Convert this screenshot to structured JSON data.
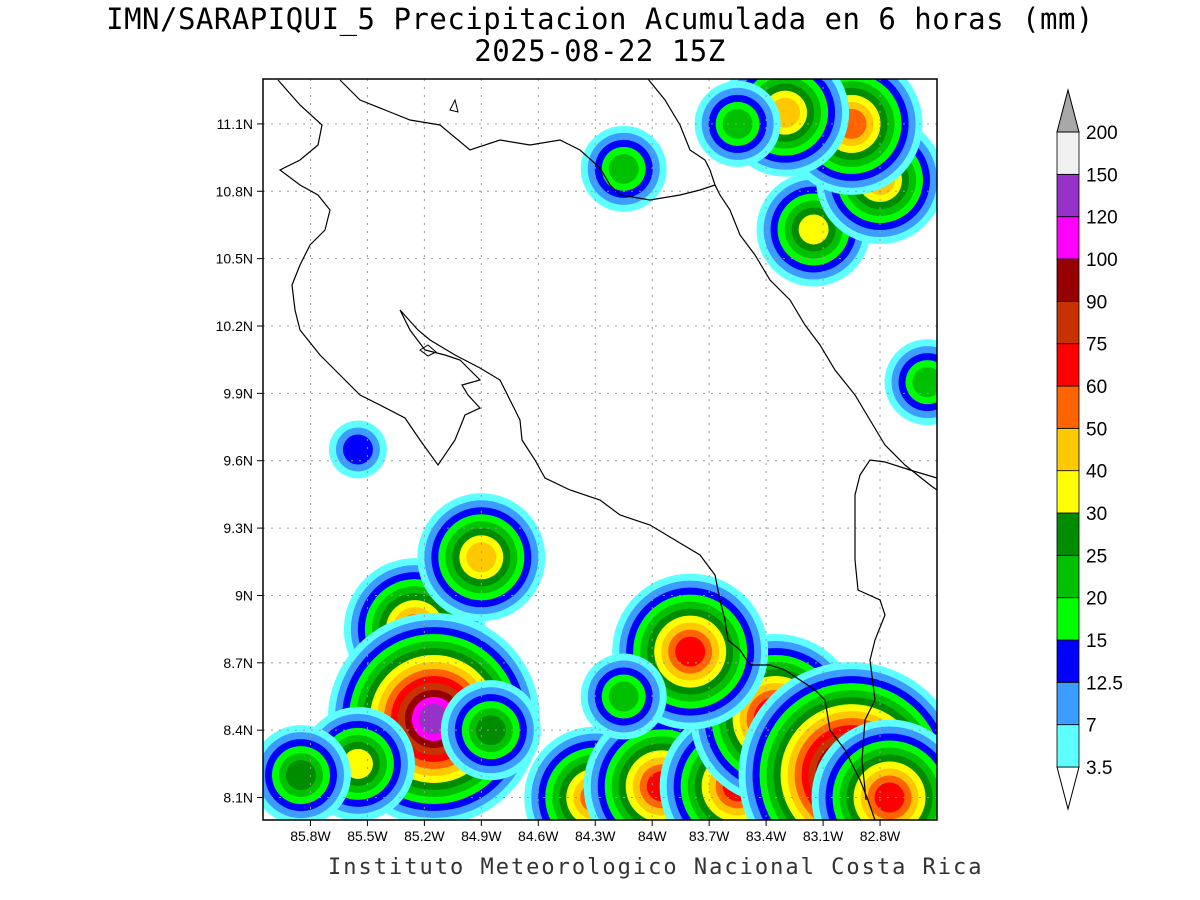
{
  "header": {
    "title": "IMN/SARAPIQUI_5 Precipitacion Acumulada en 6 horas (mm)",
    "subtitle": "2025-08-22 15Z"
  },
  "footer": "Instituto Meteorologico Nacional Costa Rica",
  "map": {
    "lon_range": [
      -86.05,
      -82.5
    ],
    "lat_range": [
      8.0,
      11.3
    ],
    "lon_ticks": [
      "85.8W",
      "85.5W",
      "85.2W",
      "84.9W",
      "84.6W",
      "84.3W",
      "84W",
      "83.7W",
      "83.4W",
      "83.1W",
      "82.8W"
    ],
    "lon_tick_values": [
      -85.8,
      -85.5,
      -85.2,
      -84.9,
      -84.6,
      -84.3,
      -84.0,
      -83.7,
      -83.4,
      -83.1,
      -82.8
    ],
    "lat_ticks": [
      "11.1N",
      "10.8N",
      "10.5N",
      "10.2N",
      "9.9N",
      "9.6N",
      "9.3N",
      "9N",
      "8.7N",
      "8.4N",
      "8.1N"
    ],
    "lat_tick_values": [
      11.1,
      10.8,
      10.5,
      10.2,
      9.9,
      9.6,
      9.3,
      9.0,
      8.7,
      8.4,
      8.1
    ],
    "grid": true
  },
  "colorbar": {
    "levels": [
      "3.5",
      "7",
      "12.5",
      "15",
      "20",
      "25",
      "30",
      "40",
      "50",
      "60",
      "75",
      "90",
      "100",
      "120",
      "150",
      "200"
    ],
    "colors": [
      "#5effff",
      "#3c9cff",
      "#0000ff",
      "#00ff00",
      "#00c000",
      "#008c00",
      "#ffff00",
      "#ffc800",
      "#ff6400",
      "#ff0000",
      "#c83200",
      "#960000",
      "#ff00ff",
      "#9632c8",
      "#f0f0f0",
      "#a8a8a8"
    ]
  },
  "precip_cells": [
    {
      "lon": -85.25,
      "lat": 8.85,
      "value": 50
    },
    {
      "lon": -85.15,
      "lat": 8.45,
      "value": 120
    },
    {
      "lon": -85.55,
      "lat": 8.25,
      "value": 30
    },
    {
      "lon": -85.85,
      "lat": 8.2,
      "value": 25
    },
    {
      "lon": -84.85,
      "lat": 8.4,
      "value": 25
    },
    {
      "lon": -84.9,
      "lat": 9.17,
      "value": 40
    },
    {
      "lon": -85.55,
      "lat": 9.65,
      "value": 12.5
    },
    {
      "lon": -84.3,
      "lat": 8.1,
      "value": 50
    },
    {
      "lon": -83.95,
      "lat": 8.15,
      "value": 60
    },
    {
      "lon": -83.55,
      "lat": 8.15,
      "value": 60
    },
    {
      "lon": -83.35,
      "lat": 8.45,
      "value": 75
    },
    {
      "lon": -82.95,
      "lat": 8.2,
      "value": 150
    },
    {
      "lon": -82.75,
      "lat": 8.1,
      "value": 60
    },
    {
      "lon": -83.8,
      "lat": 8.75,
      "value": 60
    },
    {
      "lon": -84.15,
      "lat": 8.55,
      "value": 20
    },
    {
      "lon": -83.15,
      "lat": 10.63,
      "value": 30
    },
    {
      "lon": -82.8,
      "lat": 10.85,
      "value": 40
    },
    {
      "lon": -82.95,
      "lat": 11.1,
      "value": 50
    },
    {
      "lon": -83.3,
      "lat": 11.15,
      "value": 40
    },
    {
      "lon": -83.55,
      "lat": 11.1,
      "value": 20
    },
    {
      "lon": -84.15,
      "lat": 10.9,
      "value": 20
    },
    {
      "lon": -82.55,
      "lat": 9.95,
      "value": 20
    }
  ]
}
